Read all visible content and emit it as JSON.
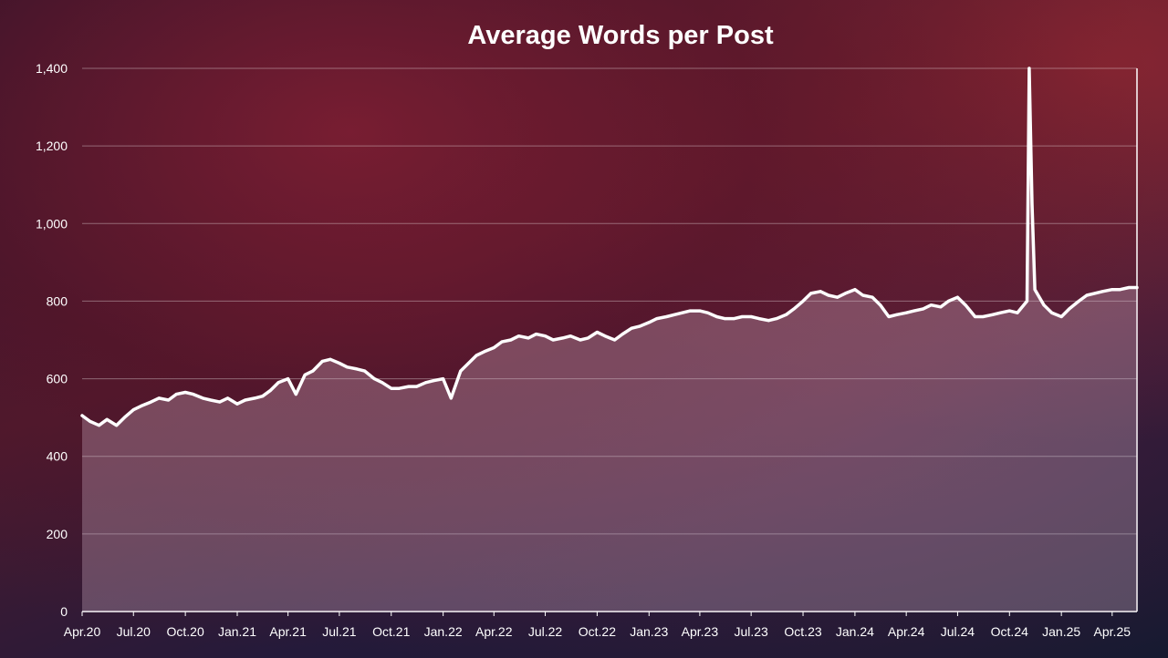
{
  "chart_data": {
    "type": "line",
    "title": "Average Words per Post",
    "xlabel": "",
    "ylabel": "",
    "ylim": [
      0,
      1400
    ],
    "yticks": [
      0,
      200,
      400,
      600,
      800,
      1000,
      1200,
      1400
    ],
    "ytick_labels": [
      "0",
      "200",
      "400",
      "600",
      "800",
      "1,000",
      "1,200",
      "1,400"
    ],
    "xlim": [
      "2020-04-01",
      "2025-05-15"
    ],
    "xticks": [
      "2020-04-01",
      "2020-07-01",
      "2020-10-01",
      "2021-01-01",
      "2021-04-01",
      "2021-07-01",
      "2021-10-01",
      "2022-01-01",
      "2022-04-01",
      "2022-07-01",
      "2022-10-01",
      "2023-01-01",
      "2023-04-01",
      "2023-07-01",
      "2023-10-01",
      "2024-01-01",
      "2024-04-01",
      "2024-07-01",
      "2024-10-01",
      "2025-01-01",
      "2025-04-01"
    ],
    "xtick_labels": [
      "Apr.20",
      "Jul.20",
      "Oct.20",
      "Jan.21",
      "Apr.21",
      "Jul.21",
      "Oct.21",
      "Jan.22",
      "Apr.22",
      "Jul.22",
      "Oct.22",
      "Jan.23",
      "Apr.23",
      "Jul.23",
      "Oct.23",
      "Jan.24",
      "Apr.24",
      "Jul.24",
      "Oct.24",
      "Jan.25",
      "Apr.25"
    ],
    "grid": true,
    "area_fill": true,
    "series": [
      {
        "color": "#ffffff",
        "x": [
          "2020-04-01",
          "2020-04-15",
          "2020-05-01",
          "2020-05-15",
          "2020-06-01",
          "2020-06-15",
          "2020-07-01",
          "2020-07-15",
          "2020-08-01",
          "2020-08-15",
          "2020-09-01",
          "2020-09-15",
          "2020-10-01",
          "2020-10-15",
          "2020-11-01",
          "2020-11-15",
          "2020-12-01",
          "2020-12-15",
          "2021-01-01",
          "2021-01-15",
          "2021-02-01",
          "2021-02-15",
          "2021-03-01",
          "2021-03-15",
          "2021-04-01",
          "2021-04-15",
          "2021-05-01",
          "2021-05-15",
          "2021-06-01",
          "2021-06-15",
          "2021-07-01",
          "2021-07-15",
          "2021-08-01",
          "2021-08-15",
          "2021-09-01",
          "2021-09-15",
          "2021-10-01",
          "2021-10-15",
          "2021-11-01",
          "2021-11-15",
          "2021-12-01",
          "2021-12-15",
          "2022-01-01",
          "2022-01-15",
          "2022-02-01",
          "2022-02-15",
          "2022-03-01",
          "2022-03-15",
          "2022-04-01",
          "2022-04-15",
          "2022-05-01",
          "2022-05-15",
          "2022-06-01",
          "2022-06-15",
          "2022-07-01",
          "2022-07-15",
          "2022-08-01",
          "2022-08-15",
          "2022-09-01",
          "2022-09-15",
          "2022-10-01",
          "2022-10-15",
          "2022-11-01",
          "2022-11-15",
          "2022-12-01",
          "2022-12-15",
          "2023-01-01",
          "2023-01-15",
          "2023-02-01",
          "2023-02-15",
          "2023-03-01",
          "2023-03-15",
          "2023-04-01",
          "2023-04-15",
          "2023-05-01",
          "2023-05-15",
          "2023-06-01",
          "2023-06-15",
          "2023-07-01",
          "2023-07-15",
          "2023-08-01",
          "2023-08-15",
          "2023-09-01",
          "2023-09-15",
          "2023-10-01",
          "2023-10-15",
          "2023-11-01",
          "2023-11-15",
          "2023-12-01",
          "2023-12-15",
          "2024-01-01",
          "2024-01-15",
          "2024-02-01",
          "2024-02-15",
          "2024-03-01",
          "2024-03-15",
          "2024-04-01",
          "2024-04-15",
          "2024-05-01",
          "2024-05-15",
          "2024-06-01",
          "2024-06-15",
          "2024-07-01",
          "2024-07-15",
          "2024-08-01",
          "2024-08-15",
          "2024-09-01",
          "2024-09-15",
          "2024-10-01",
          "2024-10-15",
          "2024-11-01",
          "2024-11-05",
          "2024-11-10",
          "2024-11-15",
          "2024-12-01",
          "2024-12-15",
          "2025-01-01",
          "2025-01-15",
          "2025-02-01",
          "2025-02-15",
          "2025-03-01",
          "2025-03-15",
          "2025-04-01",
          "2025-04-15",
          "2025-05-01",
          "2025-05-15"
        ],
        "values": [
          505,
          490,
          480,
          495,
          480,
          500,
          520,
          530,
          540,
          550,
          545,
          560,
          565,
          560,
          550,
          545,
          540,
          550,
          535,
          545,
          550,
          555,
          570,
          590,
          600,
          560,
          610,
          620,
          645,
          650,
          640,
          630,
          625,
          620,
          600,
          590,
          575,
          575,
          580,
          580,
          590,
          595,
          600,
          550,
          620,
          640,
          660,
          670,
          680,
          695,
          700,
          710,
          705,
          715,
          710,
          700,
          705,
          710,
          700,
          705,
          720,
          710,
          700,
          715,
          730,
          735,
          745,
          755,
          760,
          765,
          770,
          775,
          775,
          770,
          760,
          755,
          755,
          760,
          760,
          755,
          750,
          755,
          765,
          780,
          800,
          820,
          825,
          815,
          810,
          820,
          830,
          815,
          810,
          790,
          760,
          765,
          770,
          775,
          780,
          790,
          785,
          800,
          810,
          790,
          760,
          760,
          765,
          770,
          775,
          770,
          800,
          1400,
          1050,
          830,
          790,
          770,
          760,
          780,
          800,
          815,
          820,
          825,
          830,
          830,
          835,
          835
        ]
      }
    ]
  }
}
